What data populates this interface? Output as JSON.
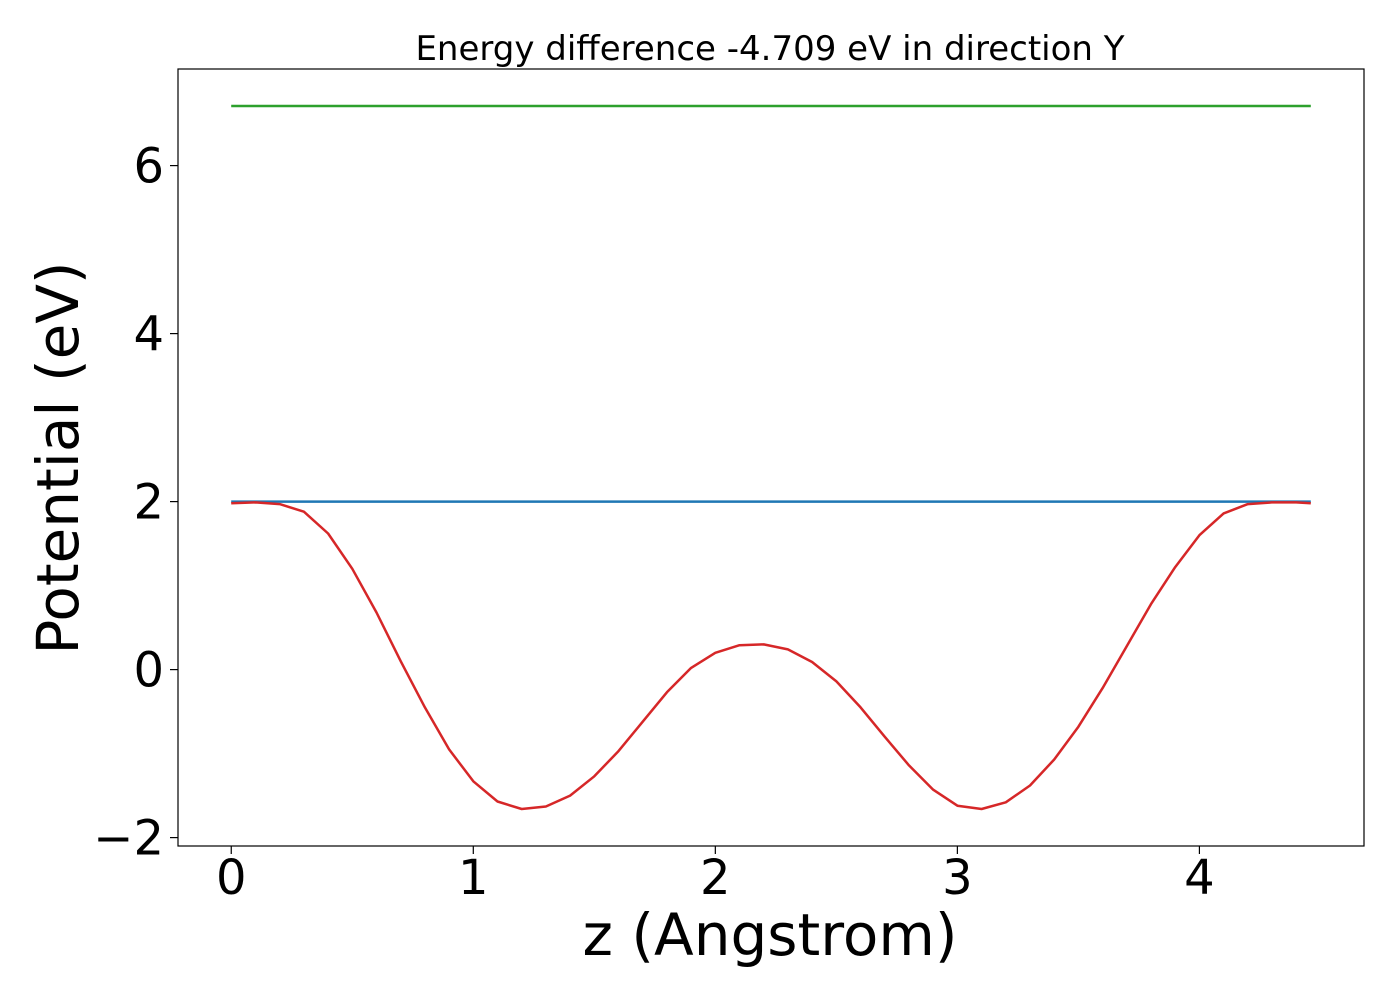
{
  "chart_data": {
    "type": "line",
    "title": "Energy difference -4.709 eV in direction Y",
    "xlabel": "z (Angstrom)",
    "ylabel": "Potential (eV)",
    "xlim": [
      -0.22,
      4.68
    ],
    "ylim": [
      -2.1,
      7.15
    ],
    "xticks": [
      0,
      1,
      2,
      3,
      4
    ],
    "xtick_labels": [
      "0",
      "1",
      "2",
      "3",
      "4"
    ],
    "yticks": [
      -2,
      0,
      2,
      4,
      6
    ],
    "ytick_labels": [
      "−2",
      "0",
      "2",
      "4",
      "6"
    ],
    "grid": false,
    "legend": "none",
    "series": [
      {
        "color": "#2ca02c",
        "x": [
          0,
          4.46
        ],
        "y": [
          6.71,
          6.71
        ]
      },
      {
        "color": "#1f77b4",
        "x": [
          0,
          4.46
        ],
        "y": [
          2.0,
          2.0
        ]
      },
      {
        "color": "#d62728",
        "x": [
          0,
          0.1,
          0.2,
          0.3,
          0.4,
          0.5,
          0.6,
          0.7,
          0.8,
          0.9,
          1.0,
          1.1,
          1.2,
          1.3,
          1.4,
          1.5,
          1.6,
          1.7,
          1.8,
          1.9,
          2.0,
          2.1,
          2.2,
          2.3,
          2.4,
          2.5,
          2.6,
          2.7,
          2.8,
          2.9,
          3.0,
          3.1,
          3.2,
          3.3,
          3.4,
          3.5,
          3.6,
          3.7,
          3.8,
          3.9,
          4.0,
          4.1,
          4.2,
          4.3,
          4.4,
          4.46
        ],
        "y": [
          1.98,
          1.99,
          1.97,
          1.88,
          1.62,
          1.2,
          0.68,
          0.1,
          -0.45,
          -0.95,
          -1.33,
          -1.57,
          -1.66,
          -1.63,
          -1.5,
          -1.27,
          -0.97,
          -0.62,
          -0.27,
          0.02,
          0.2,
          0.29,
          0.3,
          0.24,
          0.09,
          -0.14,
          -0.45,
          -0.8,
          -1.14,
          -1.43,
          -1.62,
          -1.66,
          -1.58,
          -1.38,
          -1.07,
          -0.68,
          -0.22,
          0.28,
          0.78,
          1.22,
          1.6,
          1.86,
          1.97,
          1.99,
          1.99,
          1.98
        ]
      }
    ]
  }
}
